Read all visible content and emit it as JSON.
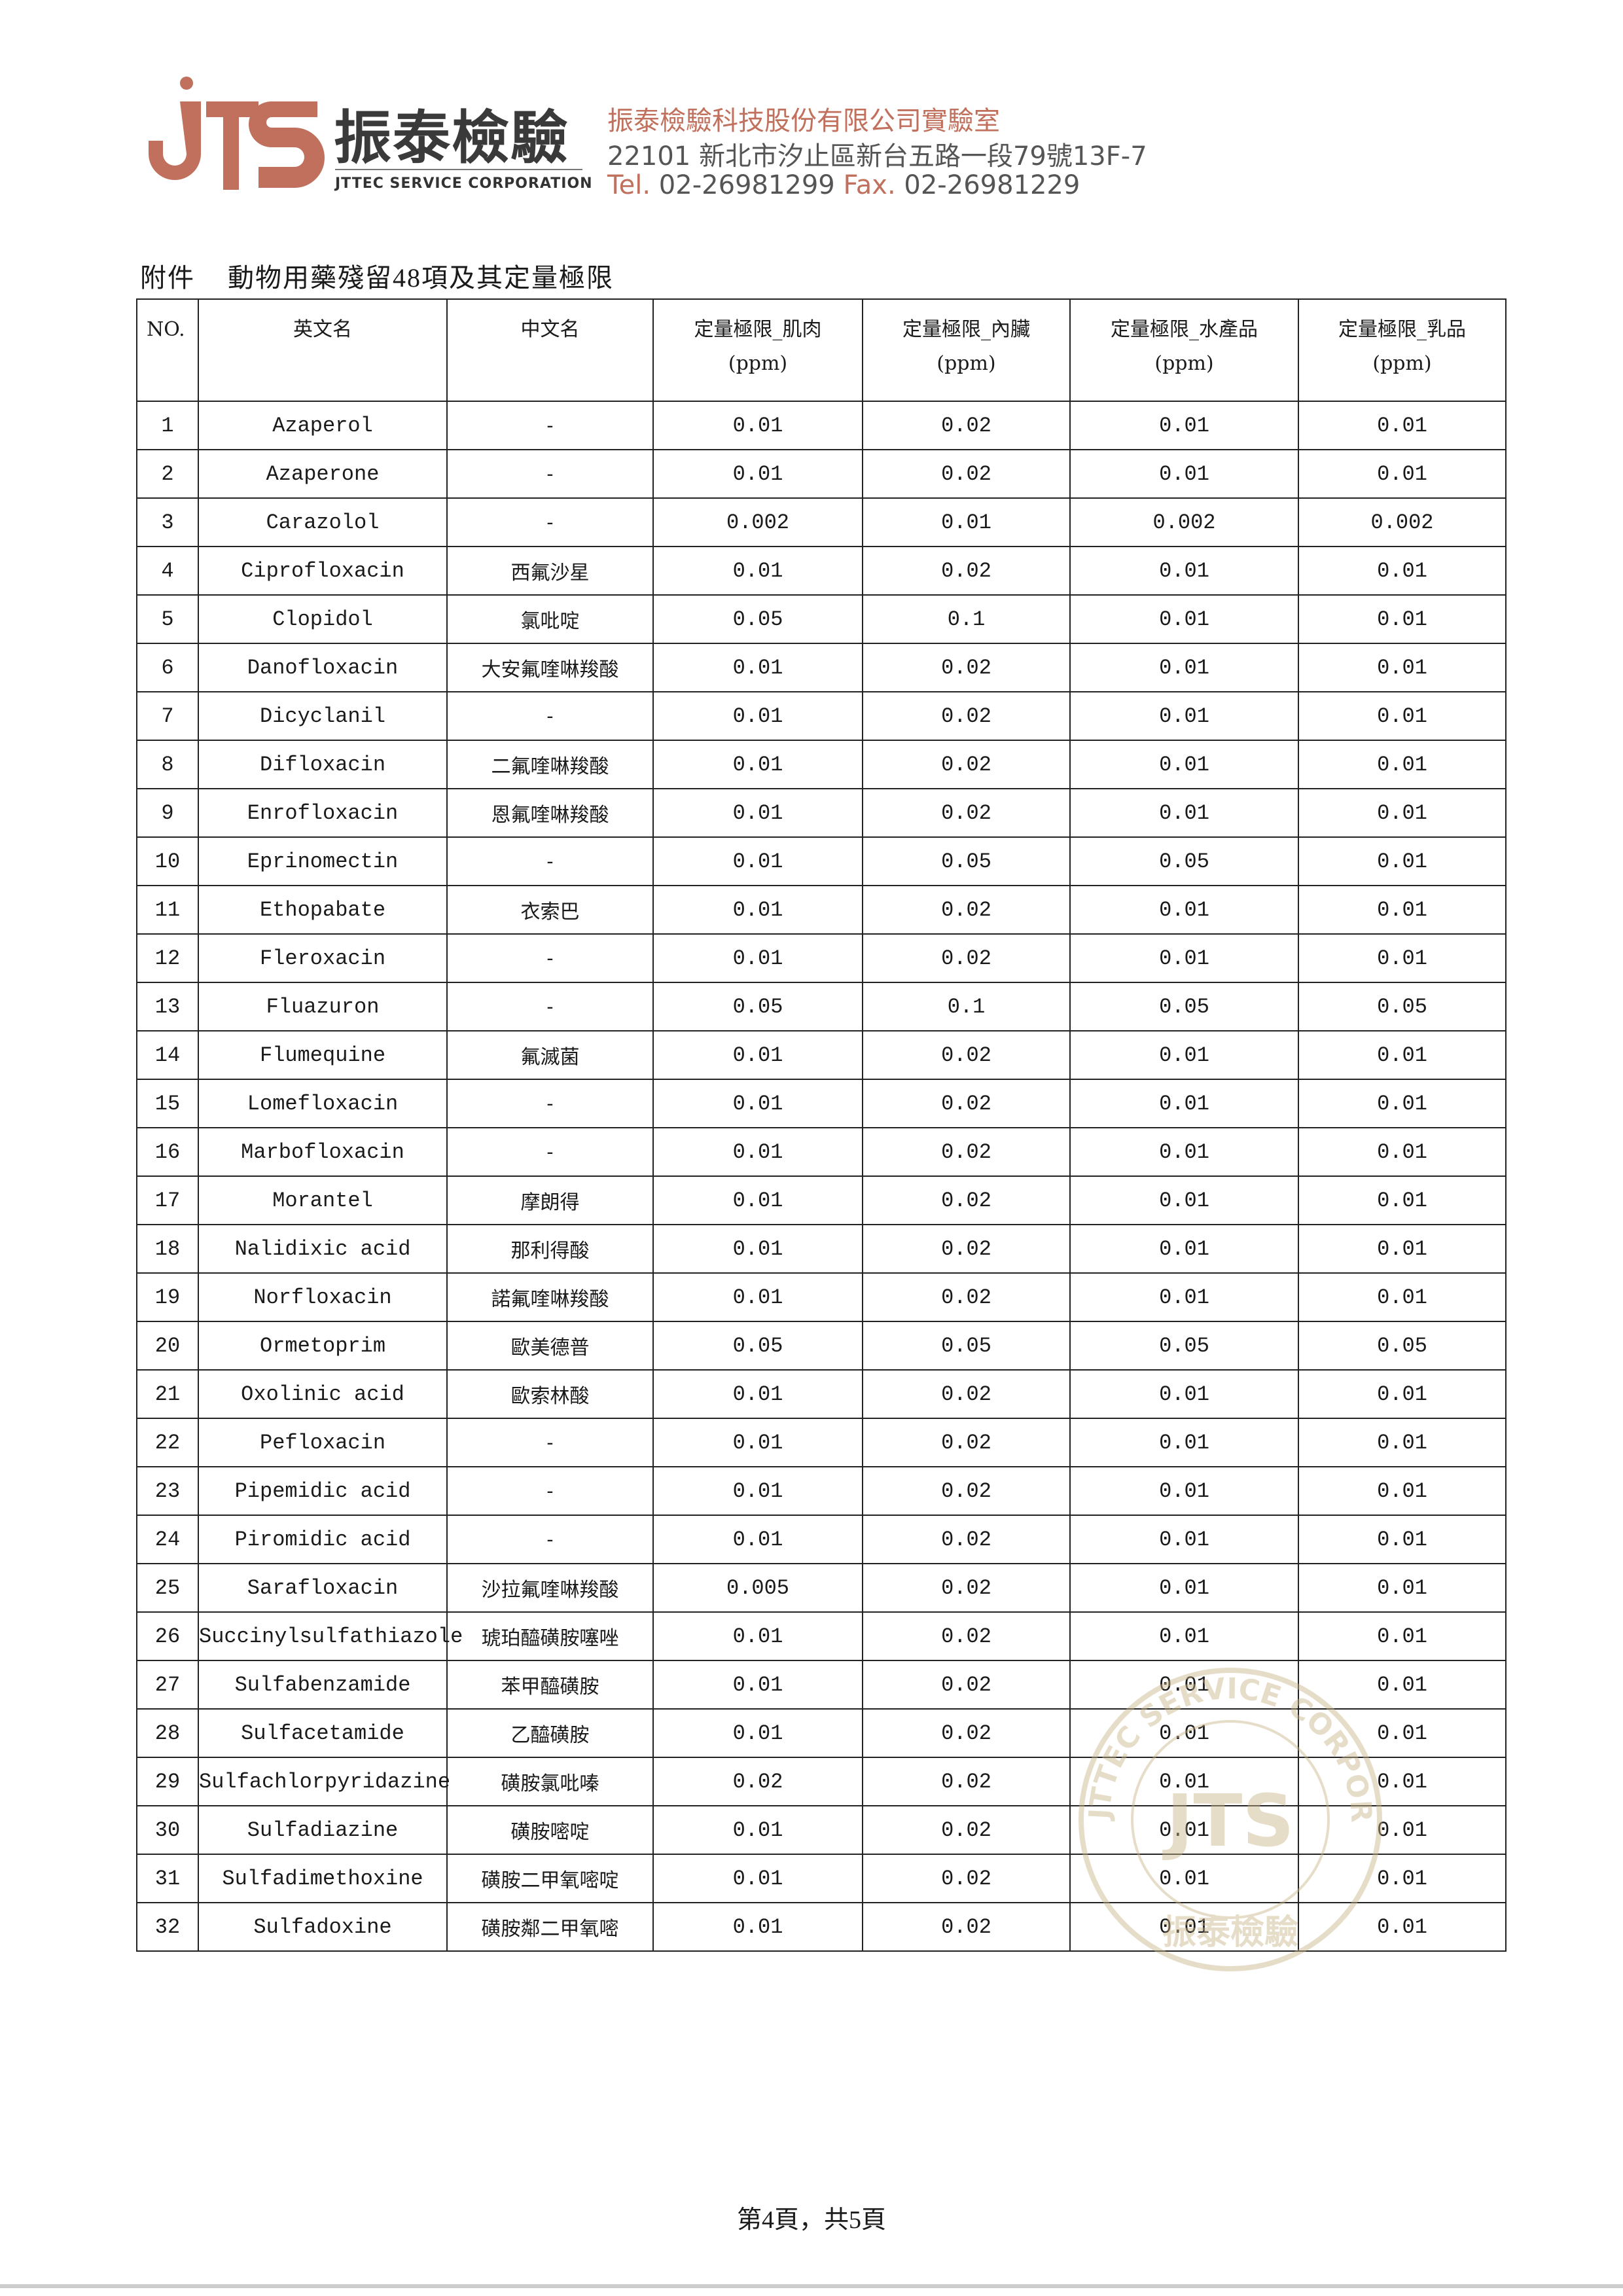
{
  "header": {
    "logo_text": "JTS",
    "brand_cn": "振泰檢驗",
    "brand_en": "JTTEC SERVICE CORPORATION",
    "company_name": "振泰檢驗科技股份有限公司實驗室",
    "address": "22101 新北市汐止區新台五路一段79號13F-7",
    "tel_label": "Tel.",
    "tel": "02-26981299",
    "fax_label": "Fax.",
    "fax": "02-26981229",
    "brand_color": "#c0705c"
  },
  "document": {
    "attachment_label": "附件",
    "title": "動物用藥殘留48項及其定量極限"
  },
  "table": {
    "columns": [
      "NO.",
      "英文名",
      "中文名",
      "定量極限_肌肉",
      "定量極限_內臟",
      "定量極限_水產品",
      "定量極限_乳品"
    ],
    "unit": "(ppm)",
    "rows": [
      [
        "1",
        "Azaperol",
        "-",
        "0.01",
        "0.02",
        "0.01",
        "0.01"
      ],
      [
        "2",
        "Azaperone",
        "-",
        "0.01",
        "0.02",
        "0.01",
        "0.01"
      ],
      [
        "3",
        "Carazolol",
        "-",
        "0.002",
        "0.01",
        "0.002",
        "0.002"
      ],
      [
        "4",
        "Ciprofloxacin",
        "西氟沙星",
        "0.01",
        "0.02",
        "0.01",
        "0.01"
      ],
      [
        "5",
        "Clopidol",
        "氯吡啶",
        "0.05",
        "0.1",
        "0.01",
        "0.01"
      ],
      [
        "6",
        "Danofloxacin",
        "大安氟喹啉羧酸",
        "0.01",
        "0.02",
        "0.01",
        "0.01"
      ],
      [
        "7",
        "Dicyclanil",
        "-",
        "0.01",
        "0.02",
        "0.01",
        "0.01"
      ],
      [
        "8",
        "Difloxacin",
        "二氟喹啉羧酸",
        "0.01",
        "0.02",
        "0.01",
        "0.01"
      ],
      [
        "9",
        "Enrofloxacin",
        "恩氟喹啉羧酸",
        "0.01",
        "0.02",
        "0.01",
        "0.01"
      ],
      [
        "10",
        "Eprinomectin",
        "-",
        "0.01",
        "0.05",
        "0.05",
        "0.01"
      ],
      [
        "11",
        "Ethopabate",
        "衣索巴",
        "0.01",
        "0.02",
        "0.01",
        "0.01"
      ],
      [
        "12",
        "Fleroxacin",
        "-",
        "0.01",
        "0.02",
        "0.01",
        "0.01"
      ],
      [
        "13",
        "Fluazuron",
        "-",
        "0.05",
        "0.1",
        "0.05",
        "0.05"
      ],
      [
        "14",
        "Flumequine",
        "氟滅菌",
        "0.01",
        "0.02",
        "0.01",
        "0.01"
      ],
      [
        "15",
        "Lomefloxacin",
        "-",
        "0.01",
        "0.02",
        "0.01",
        "0.01"
      ],
      [
        "16",
        "Marbofloxacin",
        "-",
        "0.01",
        "0.02",
        "0.01",
        "0.01"
      ],
      [
        "17",
        "Morantel",
        "摩朗得",
        "0.01",
        "0.02",
        "0.01",
        "0.01"
      ],
      [
        "18",
        "Nalidixic acid",
        "那利得酸",
        "0.01",
        "0.02",
        "0.01",
        "0.01"
      ],
      [
        "19",
        "Norfloxacin",
        "諾氟喹啉羧酸",
        "0.01",
        "0.02",
        "0.01",
        "0.01"
      ],
      [
        "20",
        "Ormetoprim",
        "歐美德普",
        "0.05",
        "0.05",
        "0.05",
        "0.05"
      ],
      [
        "21",
        "Oxolinic acid",
        "歐索林酸",
        "0.01",
        "0.02",
        "0.01",
        "0.01"
      ],
      [
        "22",
        "Pefloxacin",
        "-",
        "0.01",
        "0.02",
        "0.01",
        "0.01"
      ],
      [
        "23",
        "Pipemidic acid",
        "-",
        "0.01",
        "0.02",
        "0.01",
        "0.01"
      ],
      [
        "24",
        "Piromidic acid",
        "-",
        "0.01",
        "0.02",
        "0.01",
        "0.01"
      ],
      [
        "25",
        "Sarafloxacin",
        "沙拉氟喹啉羧酸",
        "0.005",
        "0.02",
        "0.01",
        "0.01"
      ],
      [
        "26",
        "Succinylsulfathiazole",
        "琥珀醯磺胺噻唑",
        "0.01",
        "0.02",
        "0.01",
        "0.01"
      ],
      [
        "27",
        "Sulfabenzamide",
        "苯甲醯磺胺",
        "0.01",
        "0.02",
        "0.01",
        "0.01"
      ],
      [
        "28",
        "Sulfacetamide",
        "乙醯磺胺",
        "0.01",
        "0.02",
        "0.01",
        "0.01"
      ],
      [
        "29",
        "Sulfachlorpyridazine",
        "磺胺氯吡嗪",
        "0.02",
        "0.02",
        "0.01",
        "0.01"
      ],
      [
        "30",
        "Sulfadiazine",
        "磺胺嘧啶",
        "0.01",
        "0.02",
        "0.01",
        "0.01"
      ],
      [
        "31",
        "Sulfadimethoxine",
        "磺胺二甲氧嘧啶",
        "0.01",
        "0.02",
        "0.01",
        "0.01"
      ],
      [
        "32",
        "Sulfadoxine",
        "磺胺鄰二甲氧嘧",
        "0.01",
        "0.02",
        "0.01",
        "0.01"
      ]
    ]
  },
  "stamp": {
    "text_ring": "JTTEC SERVICE CORPORATION",
    "text_bottom": "振泰檢驗",
    "logo_text": "JTS",
    "color": "#c9b48a"
  },
  "footer": {
    "page_text": "第4頁，共5頁"
  }
}
